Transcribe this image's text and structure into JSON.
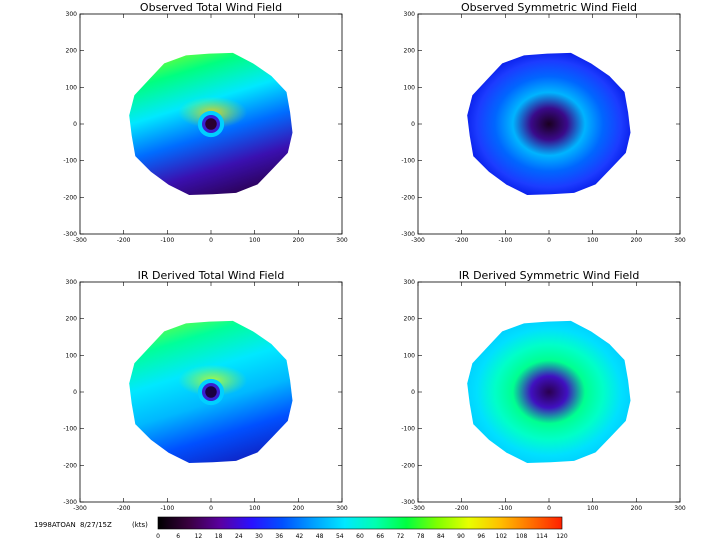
{
  "chart_data": [
    {
      "type": "heatmap",
      "title": "Observed Total Wind Field",
      "xlim": [
        -300,
        300
      ],
      "ylim": [
        -300,
        300
      ],
      "xticks": [
        "-300",
        "-200",
        "-100",
        "0",
        "100",
        "200",
        "300"
      ],
      "yticks": [
        "300",
        "200",
        "100",
        "0",
        "-100",
        "-200",
        "-300"
      ],
      "field": "asymmetric",
      "eye_color": "#2a0030",
      "ring_color": "#ffd400",
      "body_stops": [
        "#a8ff10",
        "#00ff80",
        "#00e8ff",
        "#006cff",
        "#3a10b0",
        "#2a0050"
      ]
    },
    {
      "type": "heatmap",
      "title": "Observed Symmetric Wind Field",
      "xlim": [
        -300,
        300
      ],
      "ylim": [
        -300,
        300
      ],
      "xticks": [
        "-300",
        "-200",
        "-100",
        "0",
        "100",
        "200",
        "300"
      ],
      "yticks": [
        "300",
        "200",
        "100",
        "0",
        "-100",
        "-200",
        "-300"
      ],
      "field": "symmetric",
      "radial_stops": [
        "#1a0020",
        "#3a0a8a",
        "#00b4ff",
        "#0066ff",
        "#1c3cff",
        "#0010e0"
      ]
    },
    {
      "type": "heatmap",
      "title": "IR Derived Total Wind Field",
      "xlim": [
        -300,
        300
      ],
      "ylim": [
        -300,
        300
      ],
      "xticks": [
        "-300",
        "-200",
        "-100",
        "0",
        "100",
        "200",
        "300"
      ],
      "yticks": [
        "300",
        "200",
        "100",
        "0",
        "-100",
        "-200",
        "-300"
      ],
      "field": "asymmetric",
      "eye_color": "#1a0040",
      "ring_color": "#c8ff20",
      "body_stops": [
        "#90ff20",
        "#00ff9a",
        "#00e8ff",
        "#00b8ff",
        "#0050ff",
        "#1020c0"
      ]
    },
    {
      "type": "heatmap",
      "title": "IR Derived Symmetric Wind Field",
      "xlim": [
        -300,
        300
      ],
      "ylim": [
        -300,
        300
      ],
      "xticks": [
        "-300",
        "-200",
        "-100",
        "0",
        "100",
        "200",
        "300"
      ],
      "yticks": [
        "300",
        "200",
        "100",
        "0",
        "-100",
        "-200",
        "-300"
      ],
      "field": "symmetric",
      "radial_stops": [
        "#2a0050",
        "#4010c0",
        "#00ff90",
        "#00ffc8",
        "#00e0ff",
        "#00c8ff"
      ]
    }
  ],
  "footer": {
    "storm_id": "1998ATOAN",
    "datetime": "8/27/15Z",
    "units": "(kts)"
  },
  "colorbar": {
    "ticks": [
      "0",
      "6",
      "12",
      "18",
      "24",
      "30",
      "36",
      "42",
      "48",
      "54",
      "60",
      "66",
      "72",
      "78",
      "84",
      "90",
      "96",
      "102",
      "108",
      "114",
      "120"
    ],
    "stops": [
      "#000000",
      "#3a0040",
      "#5a00a0",
      "#2a10ff",
      "#0050ff",
      "#00a0ff",
      "#00e8ff",
      "#00ffb0",
      "#00ff40",
      "#80ff00",
      "#e8ff00",
      "#ffc000",
      "#ff7000",
      "#ff2000"
    ]
  }
}
